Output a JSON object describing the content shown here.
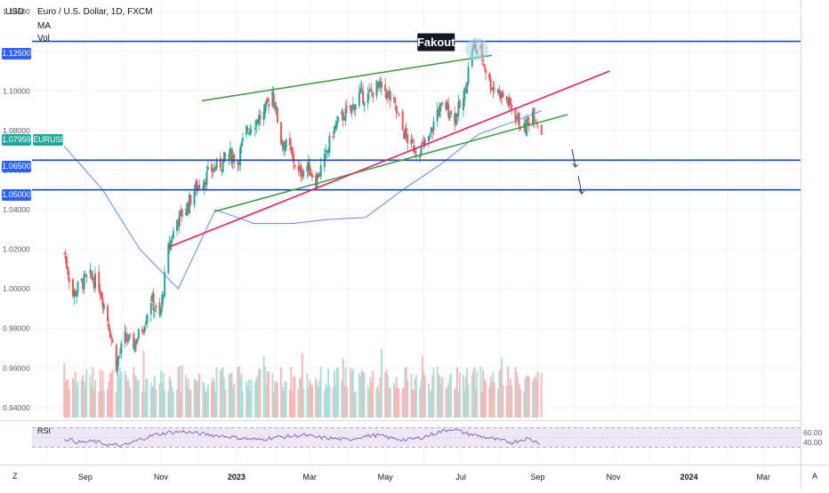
{
  "header": {
    "currency": "USD",
    "title": "Euro / U.S. Dollar, 1D, FXCM",
    "indicator_1": "MA",
    "indicator_2": "Vol"
  },
  "price_tags": {
    "level_1": "1.12500",
    "level_2": "1.06500",
    "level_3": "1.05000",
    "current": "1.07959",
    "symbol": "EURUSD"
  },
  "annotation": {
    "fakeout": "Fakout"
  },
  "corner_buttons": {
    "bottom_left": "Z",
    "bottom_right": "A"
  },
  "colors": {
    "up": "#26a69a",
    "down": "#ef5350",
    "candle_up": "#26a69a",
    "candle_down": "#ef5350",
    "horizontal_lines": "#1848cc",
    "support_lines": "#43a047",
    "trend_line": "#e91e63",
    "ma_line": "#5b8def",
    "rsi_line": "#7e57c2",
    "rsi_band": "#ede7f6",
    "tag_blue": "#2962ff"
  },
  "chart_data": {
    "type": "candlestick",
    "title": "Euro / U.S. Dollar, 1D, FXCM",
    "y_axis": {
      "ticks": [
        "1.14000",
        "1.12000",
        "1.10000",
        "1.08000",
        "1.06000",
        "1.04000",
        "1.02000",
        "1.00000",
        "0.98000",
        "0.96000",
        "0.94000"
      ],
      "range": [
        0.935,
        1.145
      ]
    },
    "x_axis": {
      "labels": [
        "Sep",
        "Nov",
        "2023",
        "Mar",
        "May",
        "Jul",
        "Sep",
        "Nov",
        "2024",
        "Mar"
      ]
    },
    "price_path": [
      [
        "2022-08-15",
        1.018
      ],
      [
        "2022-08-22",
        0.997
      ],
      [
        "2022-08-29",
        1.003
      ],
      [
        "2022-09-05",
        1.006
      ],
      [
        "2022-09-12",
        1.002
      ],
      [
        "2022-09-19",
        0.985
      ],
      [
        "2022-09-26",
        0.962
      ],
      [
        "2022-10-03",
        0.975
      ],
      [
        "2022-10-10",
        0.972
      ],
      [
        "2022-10-17",
        0.98
      ],
      [
        "2022-10-24",
        0.995
      ],
      [
        "2022-10-31",
        0.985
      ],
      [
        "2022-11-07",
        1.02
      ],
      [
        "2022-11-14",
        1.035
      ],
      [
        "2022-11-21",
        1.04
      ],
      [
        "2022-11-28",
        1.05
      ],
      [
        "2022-12-05",
        1.055
      ],
      [
        "2022-12-12",
        1.06
      ],
      [
        "2022-12-19",
        1.063
      ],
      [
        "2022-12-26",
        1.068
      ],
      [
        "2023-01-02",
        1.065
      ],
      [
        "2023-01-09",
        1.08
      ],
      [
        "2023-01-16",
        1.085
      ],
      [
        "2023-01-23",
        1.088
      ],
      [
        "2023-01-30",
        1.1
      ],
      [
        "2023-02-06",
        1.075
      ],
      [
        "2023-02-13",
        1.07
      ],
      [
        "2023-02-20",
        1.058
      ],
      [
        "2023-02-27",
        1.062
      ],
      [
        "2023-03-06",
        1.055
      ],
      [
        "2023-03-13",
        1.065
      ],
      [
        "2023-03-20",
        1.08
      ],
      [
        "2023-03-27",
        1.087
      ],
      [
        "2023-04-03",
        1.09
      ],
      [
        "2023-04-10",
        1.098
      ],
      [
        "2023-04-17",
        1.097
      ],
      [
        "2023-04-24",
        1.102
      ],
      [
        "2023-05-01",
        1.1
      ],
      [
        "2023-05-08",
        1.093
      ],
      [
        "2023-05-15",
        1.08
      ],
      [
        "2023-05-22",
        1.072
      ],
      [
        "2023-05-29",
        1.07
      ],
      [
        "2023-06-05",
        1.075
      ],
      [
        "2023-06-12",
        1.09
      ],
      [
        "2023-06-19",
        1.092
      ],
      [
        "2023-06-26",
        1.087
      ],
      [
        "2023-07-03",
        1.095
      ],
      [
        "2023-07-10",
        1.122
      ],
      [
        "2023-07-17",
        1.12
      ],
      [
        "2023-07-24",
        1.104
      ],
      [
        "2023-07-31",
        1.1
      ],
      [
        "2023-08-07",
        1.095
      ],
      [
        "2023-08-14",
        1.088
      ],
      [
        "2023-08-21",
        1.08
      ],
      [
        "2023-08-28",
        1.09
      ],
      [
        "2023-09-04",
        1.079
      ]
    ],
    "moving_average": [
      [
        "2022-08-15",
        1.072
      ],
      [
        "2022-09-15",
        1.05
      ],
      [
        "2022-10-15",
        1.02
      ],
      [
        "2022-11-15",
        1.0
      ],
      [
        "2022-12-15",
        1.04
      ],
      [
        "2023-01-15",
        1.033
      ],
      [
        "2023-02-15",
        1.033
      ],
      [
        "2023-03-15",
        1.035
      ],
      [
        "2023-04-15",
        1.036
      ],
      [
        "2023-05-15",
        1.05
      ],
      [
        "2023-06-15",
        1.063
      ],
      [
        "2023-07-15",
        1.078
      ],
      [
        "2023-08-15",
        1.085
      ],
      [
        "2023-09-04",
        1.09
      ]
    ],
    "horizontal_levels": [
      1.125,
      1.065,
      1.05
    ],
    "trendlines": [
      {
        "color": "green",
        "points": [
          [
            "2022-12-04",
            1.095
          ],
          [
            "2023-07-26",
            1.118
          ]
        ]
      },
      {
        "color": "green",
        "points": [
          [
            "2022-12-14",
            1.039
          ],
          [
            "2023-09-25",
            1.088
          ]
        ]
      },
      {
        "color": "magenta",
        "points": [
          [
            "2022-11-07",
            1.021
          ],
          [
            "2023-10-29",
            1.11
          ]
        ]
      }
    ],
    "rsi": {
      "label": "RSI",
      "ticks": [
        "60.00",
        "40.00"
      ],
      "band": [
        30,
        70
      ],
      "values": [
        48,
        40,
        42,
        35,
        33,
        45,
        55,
        60,
        62,
        58,
        55,
        52,
        48,
        45,
        50,
        52,
        55,
        50,
        48,
        45,
        52,
        55,
        48,
        45,
        50,
        60,
        68,
        58,
        52,
        45,
        40,
        48,
        38
      ]
    }
  }
}
